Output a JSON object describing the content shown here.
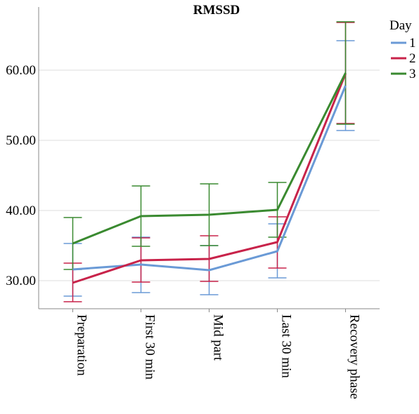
{
  "chart_data": {
    "type": "line",
    "title": "RMSSD",
    "categories": [
      "Preparation",
      "First 30 min",
      "Mid part",
      "Last 30 min",
      "Recovery phase"
    ],
    "ylim": [
      26,
      69
    ],
    "yticks": [
      30,
      40,
      50,
      60
    ],
    "ytick_labels": [
      "30.00",
      "40.00",
      "50.00",
      "60.00"
    ],
    "grid": true,
    "legend": {
      "title": "Day",
      "placement": "top-right"
    },
    "error_bars": true,
    "series": [
      {
        "name": "1",
        "color": "#6a9ad6",
        "values": [
          31.6,
          32.3,
          31.5,
          34.2,
          57.8
        ],
        "lower": [
          27.8,
          28.3,
          28.0,
          30.4,
          51.4
        ],
        "upper": [
          35.3,
          36.2,
          35.0,
          38.1,
          64.2
        ]
      },
      {
        "name": "2",
        "color": "#c8234a",
        "values": [
          29.7,
          32.9,
          33.1,
          35.5,
          59.5
        ],
        "lower": [
          27.0,
          29.8,
          29.9,
          31.8,
          52.4
        ],
        "upper": [
          32.5,
          36.1,
          36.4,
          39.1,
          66.8
        ]
      },
      {
        "name": "3",
        "color": "#3a8a30",
        "values": [
          35.3,
          39.2,
          39.4,
          40.1,
          59.6
        ],
        "lower": [
          31.6,
          34.9,
          35.0,
          36.2,
          52.3
        ],
        "upper": [
          39.0,
          43.5,
          43.8,
          44.0,
          66.9
        ]
      }
    ]
  }
}
